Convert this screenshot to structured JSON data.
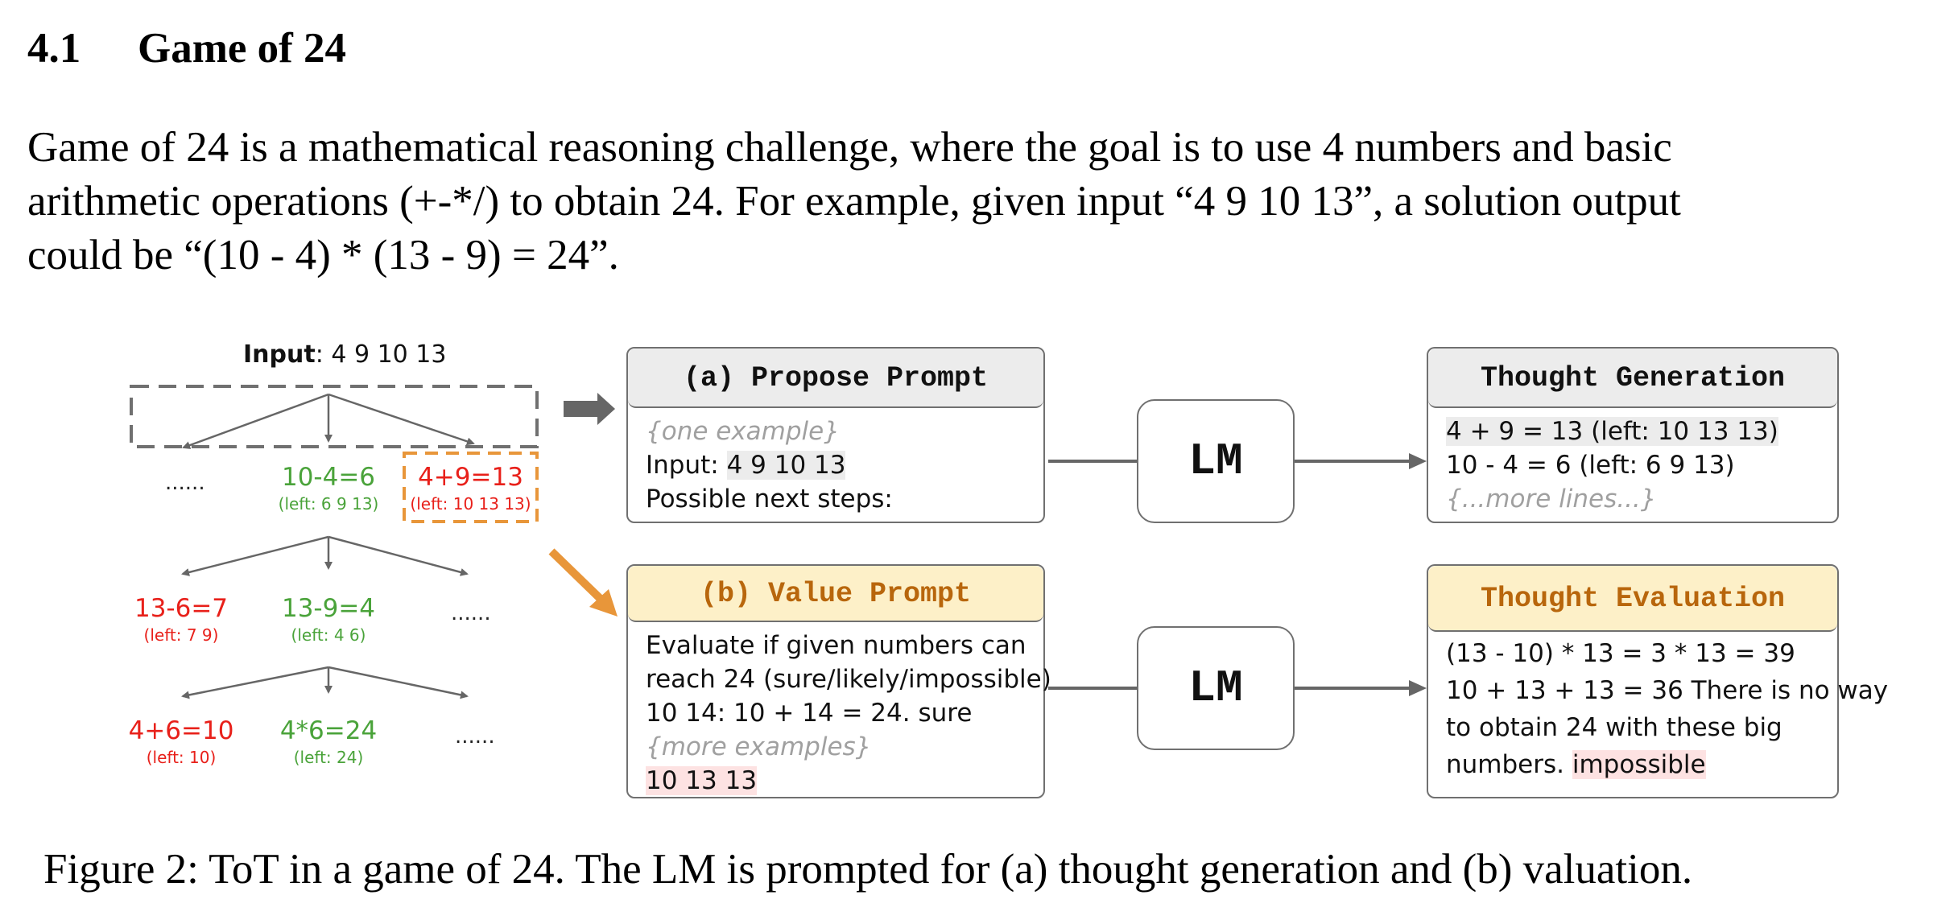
{
  "section": {
    "number": "4.1",
    "title": "Game of 24"
  },
  "intro": {
    "line1": "Game of 24 is a mathematical reasoning challenge, where the goal is to use 4 numbers and basic",
    "line2": "arithmetic operations (+-*/) to obtain 24. For example, given input “4 9 10 13”, a solution output",
    "line3": "could be “(10 - 4) * (13 - 9) = 24”."
  },
  "figure": {
    "tree": {
      "input_label": "Input",
      "input_value": ": 4 9 10 13",
      "level1": [
        {
          "text": "......",
          "left": ""
        },
        {
          "text": "10-4=6",
          "left": "(left: 6 9 13)",
          "color": "#4aa33a"
        },
        {
          "text": "4+9=13",
          "left": "(left: 10 13 13)",
          "color": "#e8201a"
        }
      ],
      "level2": [
        {
          "text": "13-6=7",
          "left": "(left: 7 9)",
          "color": "#e8201a"
        },
        {
          "text": "13-9=4",
          "left": "(left: 4 6)",
          "color": "#4aa33a"
        },
        {
          "text": "......",
          "left": ""
        }
      ],
      "level3": [
        {
          "text": "4+6=10",
          "left": "(left: 10)",
          "color": "#e8201a"
        },
        {
          "text": "4*6=24",
          "left": "(left: 24)",
          "color": "#4aa33a"
        },
        {
          "text": "......",
          "left": ""
        }
      ]
    },
    "propose_prompt": {
      "title": "(a) Propose Prompt",
      "lines": [
        "{one example}",
        "Input: ",
        "4 9 10 13",
        "Possible next steps:"
      ]
    },
    "value_prompt": {
      "title": "(b) Value Prompt",
      "lines": [
        "Evaluate if given numbers can",
        "reach 24 (sure/likely/impossible)",
        "10 14: 10 + 14 = 24. sure",
        "{more examples}",
        "10 13 13"
      ]
    },
    "lm_label": "LM",
    "thought_generation": {
      "title": "Thought Generation",
      "lines": [
        "4 + 9 = 13 (left: 10 13 13)",
        "10 - 4 = 6 (left: 6 9 13)",
        "{...more lines...}"
      ]
    },
    "thought_evaluation": {
      "title": "Thought Evaluation",
      "lines": [
        "(13 - 10) * 13 = 3 * 13 = 39",
        "10 + 13 + 13 = 36 There is no way",
        "to obtain 24 with these big",
        "numbers. ",
        "impossible"
      ]
    },
    "colors": {
      "green": "#4aa33a",
      "red": "#e8201a",
      "orange": "#e8963a",
      "grey": "#666666",
      "title_yellow": "#fdf0c8",
      "title_orange_text": "#b8660c"
    }
  },
  "caption": "Figure 2: ToT in a game of 24. The LM is prompted for (a) thought generation and (b) valuation."
}
